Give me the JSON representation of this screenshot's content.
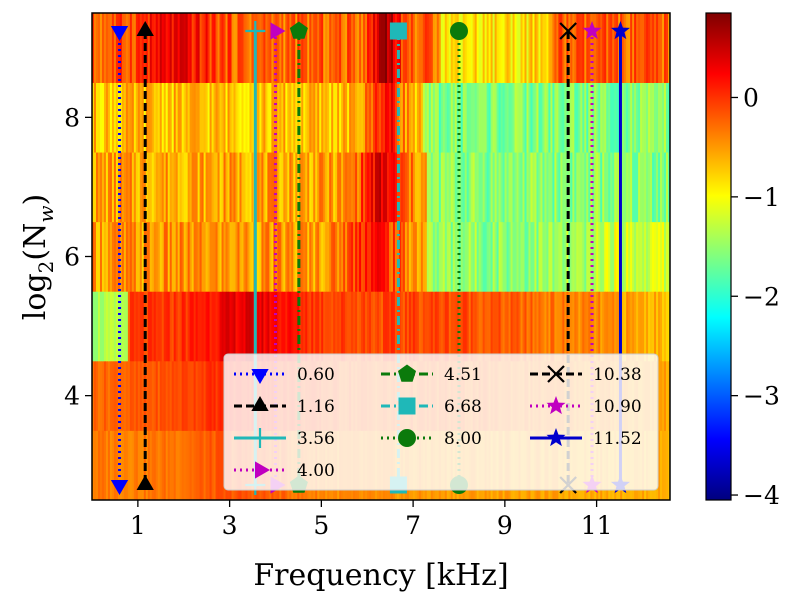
{
  "chart_data": {
    "type": "heatmap",
    "title": "",
    "xlabel": "Frequency [kHz]",
    "ylabel": "log2(Nw)",
    "ylabel_main": "log",
    "ylabel_sub": "2",
    "ylabel_open": "(N",
    "ylabel_sub2": "w",
    "ylabel_close": ")",
    "xlim": [
      0,
      12.6
    ],
    "ylim": [
      2.5,
      9.5
    ],
    "x_ticks": [
      1,
      3,
      5,
      7,
      9,
      11
    ],
    "x_tick_labels": [
      "1",
      "3",
      "5",
      "7",
      "9",
      "11"
    ],
    "y_ticks": [
      4,
      6,
      8
    ],
    "y_tick_labels": [
      "4",
      "6",
      "8"
    ],
    "colorbar": {
      "min": -4.05,
      "max": 0.85,
      "ticks": [
        0,
        -1,
        -2,
        -3,
        -4
      ],
      "tick_labels": [
        "0",
        "−1",
        "−2",
        "−3",
        "−4"
      ],
      "colormap": "jet"
    },
    "rows": [
      3,
      4,
      5,
      6,
      7,
      8,
      9
    ],
    "markers": [
      {
        "label": "0.60",
        "freq": 0.6,
        "color": "#0000ff",
        "linestyle": "dotted",
        "marker": "triangle-down"
      },
      {
        "label": "1.16",
        "freq": 1.16,
        "color": "#000000",
        "linestyle": "dashed",
        "marker": "triangle-up"
      },
      {
        "label": "3.56",
        "freq": 3.56,
        "color": "#1fb8b8",
        "linestyle": "solid",
        "marker": "plus"
      },
      {
        "label": "4.00",
        "freq": 4.0,
        "color": "#c000c0",
        "linestyle": "dotted",
        "marker": "triangle-right"
      },
      {
        "label": "4.51",
        "freq": 4.51,
        "color": "#0b7a0b",
        "linestyle": "dashdot",
        "marker": "pentagon"
      },
      {
        "label": "6.68",
        "freq": 6.68,
        "color": "#1fb8b8",
        "linestyle": "dashdot",
        "marker": "square"
      },
      {
        "label": "8.00",
        "freq": 8.0,
        "color": "#0b7a0b",
        "linestyle": "dotted",
        "marker": "circle"
      },
      {
        "label": "10.38",
        "freq": 10.38,
        "color": "#000000",
        "linestyle": "dashed",
        "marker": "x"
      },
      {
        "label": "10.90",
        "freq": 10.9,
        "color": "#c000c0",
        "linestyle": "dotted",
        "marker": "star"
      },
      {
        "label": "11.52",
        "freq": 11.52,
        "color": "#0000cc",
        "linestyle": "solid",
        "marker": "star"
      }
    ],
    "legend": {
      "position": "lower-right",
      "columns": 3
    },
    "colors": {
      "frame": "#000000",
      "background": "#ffffff"
    }
  }
}
